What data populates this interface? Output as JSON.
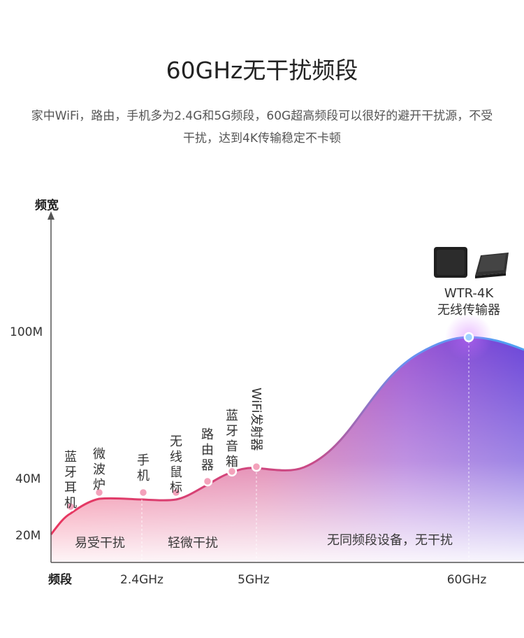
{
  "header": {
    "title": "60GHz无干扰频段",
    "subtitle": "家中WiFi，路由，手机多为2.4G和5G频段，60G超高频段可以很好的避开干扰源，不受干扰，达到4K传输稳定不卡顿"
  },
  "chart_data": {
    "type": "area",
    "ylabel": "频宽",
    "xlabel": "频段",
    "y_ticks": [
      "100M",
      "40M",
      "20M"
    ],
    "x_ticks": [
      "2.4GHz",
      "5GHz",
      "60GHz"
    ],
    "points": [
      {
        "label": "蓝牙耳机",
        "band": "2.4GHz",
        "value": 30
      },
      {
        "label": "微波炉",
        "band": "2.4GHz",
        "value": 35
      },
      {
        "label": "手机",
        "band": "2.4GHz",
        "value": 35
      },
      {
        "label": "无线鼠标",
        "band": "2.4GHz",
        "value": 35
      },
      {
        "label": "路由器",
        "band": "5GHz",
        "value": 39
      },
      {
        "label": "蓝牙音箱",
        "band": "5GHz",
        "value": 43
      },
      {
        "label": "WiFi发射器",
        "band": "5GHz",
        "value": 45
      },
      {
        "label": "WTR-4K 无线传输器",
        "band": "60GHz",
        "value": 100
      }
    ],
    "regions": [
      "易受干扰",
      "轻微干扰",
      "无同频段设备，无干扰"
    ],
    "product": {
      "line1": "WTR-4K",
      "line2": "无线传输器"
    },
    "colors": {
      "low": "#ec3c6a",
      "high": "#6a40d8",
      "accent": "#4f9ff0"
    }
  }
}
